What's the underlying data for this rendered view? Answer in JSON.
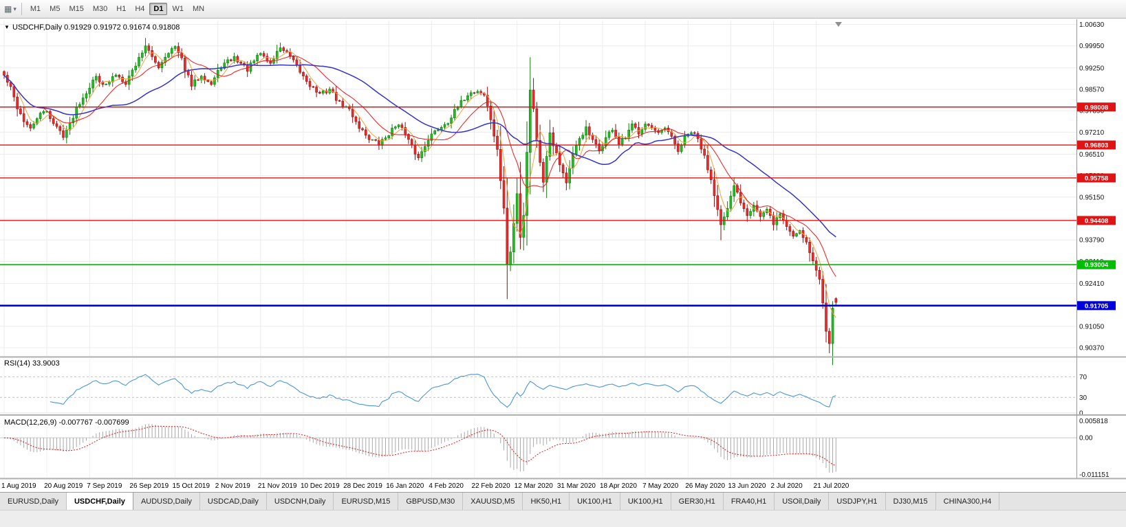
{
  "toolbar": {
    "icon_glyph": "▦",
    "icon_caret": "▾",
    "timeframes": [
      "M1",
      "M5",
      "M15",
      "M30",
      "H1",
      "H4",
      "D1",
      "W1",
      "MN"
    ],
    "active_timeframe": "D1"
  },
  "chart": {
    "collapse_glyph": "▼",
    "title_text": "USDCHF,Daily  0.91929 0.91972 0.91674 0.91808",
    "price_ticks": [
      "1.00630",
      "0.99950",
      "0.99250",
      "0.98570",
      "0.97890",
      "0.97210",
      "0.96510",
      "0.95830",
      "0.95150",
      "0.94470",
      "0.93790",
      "0.93110",
      "0.92410",
      "0.91730",
      "0.91050",
      "0.90370"
    ],
    "hlines": [
      {
        "label": "0.98008",
        "value": 0.98008,
        "color": "#E01414",
        "width": 1.4
      },
      {
        "label": "0.96803",
        "value": 0.96803,
        "color": "#E01414",
        "width": 1.4
      },
      {
        "label": "0.95758",
        "value": 0.95758,
        "color": "#E01414",
        "width": 1.4
      },
      {
        "label": "0.94408",
        "value": 0.94408,
        "color": "#E01414",
        "width": 1.4
      },
      {
        "label": "0.93004",
        "value": 0.93004,
        "color": "#00BE00",
        "width": 1.8
      },
      {
        "label": "0.91705",
        "value": 0.91705,
        "color": "#0000DC",
        "width": 2.6
      }
    ],
    "colors": {
      "up_fill": "#1FC11F",
      "up_stroke": "#0B7A0B",
      "down_fill": "#EE2C2C",
      "down_stroke": "#8F0F0F",
      "grid": "#ECECEC",
      "axis_text": "#111111"
    }
  },
  "rsi": {
    "label": "RSI(14) 33.9003",
    "period": 14,
    "value": 33.9003,
    "level_labels": [
      "70",
      "30",
      "0"
    ],
    "level_values": [
      70,
      30,
      0
    ],
    "line_color": "#4C96D8"
  },
  "macd": {
    "label": "MACD(12,26,9) -0.007767 -0.007699",
    "fast": 12,
    "slow": 26,
    "signal": 9,
    "macd_value": -0.007767,
    "signal_value": -0.007699,
    "axis_labels": [
      "0.005818",
      "0.00",
      "-0.011151"
    ],
    "axis_values": [
      0.005818,
      0,
      -0.011151
    ],
    "histogram_color": "#A8A8A8",
    "signal_color": "#E01414"
  },
  "x_axis": {
    "dates": [
      "1 Aug 2019",
      "20 Aug 2019",
      "7 Sep 2019",
      "26 Sep 2019",
      "15 Oct 2019",
      "2 Nov 2019",
      "21 Nov 2019",
      "10 Dec 2019",
      "28 Dec 2019",
      "16 Jan 2020",
      "4 Feb 2020",
      "22 Feb 2020",
      "12 Mar 2020",
      "31 Mar 2020",
      "18 Apr 2020",
      "7 May 2020",
      "26 May 2020",
      "13 Jun 2020",
      "2 Jul 2020",
      "21 Jul 2020"
    ],
    "candle_indexes": [
      0,
      13,
      26,
      39,
      52,
      65,
      78,
      91,
      104,
      117,
      130,
      143,
      156,
      169,
      182,
      195,
      208,
      221,
      234,
      247
    ]
  },
  "tabs": {
    "active_index": 1,
    "items": [
      "EURUSD,Daily",
      "USDCHF,Daily",
      "AUDUSD,Daily",
      "USDCAD,Daily",
      "USDCNH,Daily",
      "EURUSD,M15",
      "GBPUSD,M30",
      "XAUUSD,M5",
      "HK50,H1",
      "UK100,H1",
      "UK100,H1",
      "GER30,H1",
      "FRA40,H1",
      "USOil,Daily",
      "USDJPY,H1",
      "DJ30,M15",
      "CHINA300,H4"
    ]
  },
  "chart_data": {
    "type": "candlestick",
    "symbol": "USDCHF",
    "timeframe": "Daily",
    "last_quote": {
      "open": 0.91929,
      "high": 0.91972,
      "low": 0.91674,
      "close": 0.91808
    },
    "candle_count": 254,
    "noise_seed": 42,
    "noise_amplitude": 0.0016,
    "horizontal_levels": [
      0.98008,
      0.96803,
      0.95758,
      0.94408,
      0.93004,
      0.91705
    ],
    "moving_averages": [
      {
        "period": 5,
        "color": "#F2A33C",
        "width": 1
      },
      {
        "period": 13,
        "color": "#F01818",
        "width": 1
      },
      {
        "period": 34,
        "color": "#3333CC",
        "width": 1.5
      }
    ],
    "close_anchors": [
      [
        0,
        0.99
      ],
      [
        2,
        0.986
      ],
      [
        4,
        0.98
      ],
      [
        6,
        0.9758
      ],
      [
        8,
        0.9728
      ],
      [
        10,
        0.9768
      ],
      [
        13,
        0.979
      ],
      [
        15,
        0.9748
      ],
      [
        18,
        0.9712
      ],
      [
        20,
        0.9745
      ],
      [
        22,
        0.98
      ],
      [
        25,
        0.985
      ],
      [
        28,
        0.9898
      ],
      [
        31,
        0.9868
      ],
      [
        34,
        0.9905
      ],
      [
        37,
        0.988
      ],
      [
        40,
        0.9935
      ],
      [
        43,
        0.9998
      ],
      [
        45,
        0.9955
      ],
      [
        47,
        0.993
      ],
      [
        50,
        0.9978
      ],
      [
        52,
        0.999
      ],
      [
        54,
        0.995
      ],
      [
        57,
        0.9868
      ],
      [
        60,
        0.9905
      ],
      [
        63,
        0.9873
      ],
      [
        66,
        0.993
      ],
      [
        70,
        0.9958
      ],
      [
        74,
        0.992
      ],
      [
        78,
        0.9972
      ],
      [
        81,
        0.9938
      ],
      [
        84,
        0.9992
      ],
      [
        87,
        0.9958
      ],
      [
        90,
        0.9912
      ],
      [
        93,
        0.9872
      ],
      [
        96,
        0.984
      ],
      [
        99,
        0.9858
      ],
      [
        102,
        0.9812
      ],
      [
        105,
        0.9792
      ],
      [
        108,
        0.9738
      ],
      [
        111,
        0.9702
      ],
      [
        114,
        0.9682
      ],
      [
        117,
        0.9716
      ],
      [
        120,
        0.9752
      ],
      [
        123,
        0.9692
      ],
      [
        126,
        0.9638
      ],
      [
        129,
        0.9702
      ],
      [
        132,
        0.9732
      ],
      [
        135,
        0.9756
      ],
      [
        138,
        0.98
      ],
      [
        141,
        0.9842
      ],
      [
        144,
        0.9852
      ],
      [
        146,
        0.984
      ],
      [
        148,
        0.9762
      ],
      [
        150,
        0.966
      ],
      [
        152,
        0.948
      ],
      [
        153,
        0.93
      ],
      [
        154,
        0.934
      ],
      [
        155,
        0.943
      ],
      [
        156,
        0.953
      ],
      [
        157,
        0.939
      ],
      [
        158,
        0.946
      ],
      [
        159,
        0.966
      ],
      [
        160,
        0.9852
      ],
      [
        161,
        0.98
      ],
      [
        162,
        0.97
      ],
      [
        163,
        0.9622
      ],
      [
        164,
        0.9565
      ],
      [
        165,
        0.965
      ],
      [
        166,
        0.9722
      ],
      [
        167,
        0.9685
      ],
      [
        169,
        0.9622
      ],
      [
        171,
        0.9562
      ],
      [
        173,
        0.9645
      ],
      [
        175,
        0.9702
      ],
      [
        177,
        0.9732
      ],
      [
        179,
        0.9692
      ],
      [
        181,
        0.9662
      ],
      [
        183,
        0.9702
      ],
      [
        185,
        0.9732
      ],
      [
        187,
        0.9682
      ],
      [
        189,
        0.9702
      ],
      [
        191,
        0.9742
      ],
      [
        193,
        0.9722
      ],
      [
        195,
        0.9752
      ],
      [
        197,
        0.9732
      ],
      [
        199,
        0.9712
      ],
      [
        201,
        0.9732
      ],
      [
        203,
        0.9702
      ],
      [
        205,
        0.9662
      ],
      [
        207,
        0.9702
      ],
      [
        209,
        0.9722
      ],
      [
        211,
        0.9698
      ],
      [
        213,
        0.9642
      ],
      [
        215,
        0.9572
      ],
      [
        217,
        0.9482
      ],
      [
        218,
        0.9425
      ],
      [
        220,
        0.9472
      ],
      [
        222,
        0.9552
      ],
      [
        224,
        0.9502
      ],
      [
        226,
        0.9462
      ],
      [
        228,
        0.9492
      ],
      [
        230,
        0.9452
      ],
      [
        232,
        0.9472
      ],
      [
        234,
        0.9432
      ],
      [
        236,
        0.9462
      ],
      [
        238,
        0.9422
      ],
      [
        240,
        0.9392
      ],
      [
        242,
        0.9412
      ],
      [
        244,
        0.9372
      ],
      [
        246,
        0.9312
      ],
      [
        248,
        0.9252
      ],
      [
        249,
        0.918
      ],
      [
        250,
        0.9095
      ],
      [
        251,
        0.9058
      ],
      [
        252,
        0.9168
      ],
      [
        253,
        0.91808
      ]
    ],
    "wick_overrides": [
      [
        43,
        "high",
        1.002
      ],
      [
        84,
        "high",
        1.0005
      ],
      [
        153,
        "low",
        0.9252
      ],
      [
        160,
        "high",
        0.99
      ],
      [
        218,
        "low",
        0.9378
      ],
      [
        251,
        "low",
        0.9041
      ]
    ]
  }
}
